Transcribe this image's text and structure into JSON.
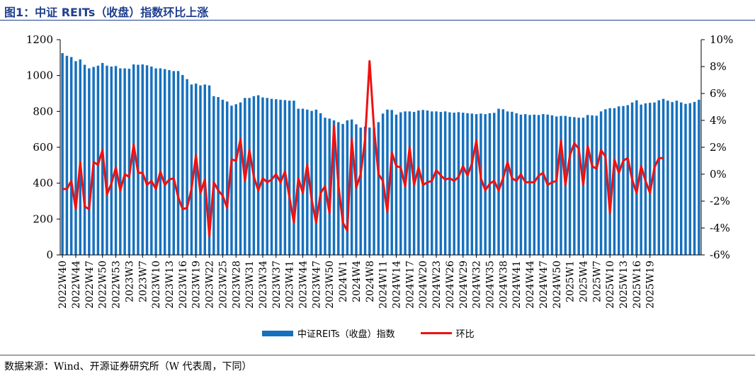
{
  "header": {
    "title": "图1：中证 REITs（收盘）指数环比上涨"
  },
  "footer": {
    "source": "数据来源：Wind、开源证券研究所（W 代表周，下同）"
  },
  "chart_data": {
    "type": "bar",
    "title": "图1：中证 REITs（收盘）指数环比上涨",
    "ylim": [
      0,
      1200
    ],
    "yticks": [
      "0",
      "200",
      "400",
      "600",
      "800",
      "1000",
      "1200"
    ],
    "y2lim": [
      -6,
      10
    ],
    "y2ticks": [
      "-6%",
      "-4%",
      "-2%",
      "0%",
      "2%",
      "4%",
      "6%",
      "8%",
      "10%"
    ],
    "legend_position": "bottom",
    "grid": false,
    "x_tick_labels": [
      "2022W40",
      "2022W44",
      "2022W47",
      "2022W50",
      "2022W53",
      "2023W3",
      "2023W7",
      "2023W10",
      "2023W13",
      "2023W16",
      "2023W19",
      "2023W22",
      "2023W25",
      "2023W28",
      "2023W31",
      "2023W34",
      "2023W37",
      "2023W41",
      "2023W44",
      "2023W47",
      "2023W50",
      "2024W1",
      "2024W4",
      "2024W8",
      "2024W11",
      "2024W14",
      "2024W17",
      "2024W20",
      "2024W23",
      "2024W26",
      "2024W29",
      "2024W32",
      "2024W35",
      "2024W38",
      "2024W41",
      "2024W44",
      "2024W47",
      "2024W50",
      "2025W1",
      "2025W4",
      "2025W7",
      "2025W10",
      "2025W13",
      "2025W16",
      "2025W19"
    ],
    "series": [
      {
        "name": "中证REITs（收盘）指数",
        "type": "bar",
        "axis": "left",
        "color": "#1570be",
        "values": [
          1125,
          1110,
          1103,
          1080,
          1090,
          1060,
          1040,
          1048,
          1055,
          1070,
          1055,
          1050,
          1053,
          1040,
          1040,
          1038,
          1062,
          1060,
          1062,
          1057,
          1050,
          1040,
          1040,
          1036,
          1030,
          1025,
          1025,
          1003,
          980,
          950,
          955,
          945,
          950,
          945,
          885,
          880,
          865,
          855,
          832,
          840,
          850,
          875,
          875,
          885,
          890,
          878,
          875,
          870,
          868,
          865,
          863,
          860,
          860,
          815,
          815,
          810,
          803,
          810,
          790,
          765,
          760,
          750,
          740,
          730,
          750,
          755,
          728,
          710,
          715,
          710,
          710,
          740,
          788,
          810,
          808,
          782,
          795,
          800,
          800,
          797,
          805,
          808,
          805,
          800,
          800,
          797,
          800,
          795,
          793,
          796,
          793,
          790,
          788,
          785,
          788,
          785,
          790,
          792,
          815,
          812,
          800,
          798,
          790,
          782,
          785,
          780,
          782,
          780,
          785,
          782,
          778,
          772,
          775,
          775,
          770,
          768,
          765,
          765,
          780,
          778,
          776,
          800,
          812,
          818,
          818,
          828,
          830,
          835,
          850,
          862,
          838,
          845,
          848,
          850,
          862,
          870,
          860,
          852,
          860,
          850,
          842,
          846,
          853,
          865
        ]
      },
      {
        "name": "环比",
        "type": "line",
        "axis": "right",
        "color": "#ee1111",
        "values": [
          -1.1,
          -1.1,
          -0.5,
          -2.6,
          0.9,
          -2.4,
          -2.6,
          0.9,
          0.7,
          1.8,
          -1.5,
          -0.7,
          0.5,
          -1.2,
          0.0,
          -0.2,
          2.2,
          0.1,
          0.1,
          -0.8,
          -0.5,
          -1.1,
          0.2,
          -0.8,
          -0.4,
          -0.3,
          -1.7,
          -2.6,
          -2.5,
          -1.1,
          1.4,
          -1.4,
          -0.4,
          -4.6,
          -0.6,
          -1.2,
          -1.6,
          -2.5,
          1.1,
          1.0,
          2.6,
          -0.5,
          1.8,
          -0.2,
          -1.2,
          -0.3,
          -0.6,
          -0.4,
          0.0,
          -0.6,
          0.2,
          -1.7,
          -3.6,
          -0.3,
          -1.4,
          0.7,
          -1.9,
          -3.6,
          -1.4,
          -0.9,
          -2.9,
          3.6,
          -0.8,
          -3.6,
          -4.2,
          2.6,
          -1.0,
          0.0,
          2.6,
          8.4,
          3.4,
          0.0,
          -0.5,
          -2.8,
          1.6,
          0.6,
          0.5,
          -0.9,
          2.0,
          -0.8,
          0.5,
          -0.8,
          -0.6,
          -0.5,
          0.3,
          -0.1,
          -0.4,
          -0.3,
          -0.5,
          -0.2,
          0.6,
          -0.1,
          0.8,
          2.5,
          -0.3,
          -1.2,
          -0.7,
          -0.5,
          -1.2,
          -0.3,
          0.9,
          -0.3,
          -0.5,
          0.0,
          -0.6,
          -0.6,
          -0.6,
          -0.1,
          0.1,
          -0.8,
          -0.6,
          -0.5,
          2.5,
          -0.8,
          1.4,
          2.3,
          1.9,
          -0.8,
          2.1,
          0.6,
          0.4,
          1.8,
          1.3,
          -2.9,
          1.1,
          0.1,
          1.0,
          1.2,
          -0.4,
          -1.4,
          0.6,
          -0.5,
          -1.4,
          0.5,
          1.2,
          1.2
        ]
      }
    ]
  }
}
